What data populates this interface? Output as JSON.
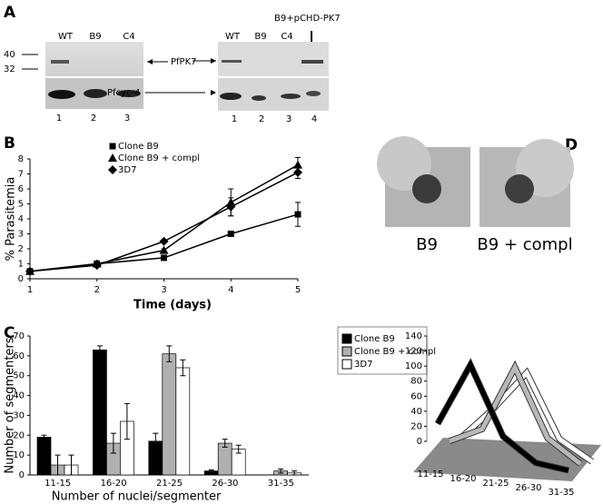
{
  "panel_a": {
    "label": "A",
    "left_blot": {
      "lanes": [
        "WT",
        "B9",
        "C4"
      ],
      "markers": [
        40,
        32
      ],
      "bands": [
        "PfPK7",
        "Pfcyc-4"
      ],
      "lane_numbers": [
        1,
        2,
        3
      ]
    },
    "right_blot": {
      "construct": "B9+pCHD-PK7",
      "lanes": [
        "WT",
        "B9",
        "C4"
      ],
      "lane_numbers": [
        1,
        2,
        3,
        4
      ]
    }
  },
  "panel_d": {
    "label": "D",
    "images": [
      "B9",
      "B9 + compl"
    ]
  },
  "chart_data": [
    {
      "type": "line",
      "panel_label": "B",
      "x_label": "Time (days)",
      "y_label": "% Parasitemia",
      "x": [
        1,
        2,
        3,
        4,
        5
      ],
      "xlim": [
        1,
        5
      ],
      "xticks": [
        1,
        2,
        3,
        4,
        5
      ],
      "ylim": [
        0,
        8
      ],
      "yticks": [
        0,
        1,
        2,
        3,
        4,
        5,
        6,
        7,
        8
      ],
      "series": [
        {
          "name": "Clone B9",
          "color": "#000000",
          "marker": "square",
          "values": [
            0.5,
            1.0,
            1.4,
            3.0,
            4.3
          ],
          "errors": [
            0,
            0.1,
            0.1,
            0.1,
            0.8
          ]
        },
        {
          "name": "Clone B9 + compl",
          "color": "#000000",
          "marker": "triangle",
          "values": [
            0.5,
            1.0,
            1.9,
            5.1,
            7.6
          ],
          "errors": [
            0,
            0.2,
            0.1,
            0.9,
            0.5
          ]
        },
        {
          "name": "3D7",
          "color": "#000000",
          "marker": "diamond",
          "values": [
            0.5,
            0.9,
            2.5,
            4.8,
            7.1
          ],
          "errors": [
            0,
            0.1,
            0.1,
            0.6,
            0.4
          ]
        }
      ]
    },
    {
      "type": "bar",
      "panel_label": "C",
      "x_label": "Number of nuclei/segmenter",
      "y_label": "Number of segmenters",
      "categories": [
        "11-15",
        "16-20",
        "21-25",
        "26-30",
        "31-35"
      ],
      "ylim": [
        0,
        70
      ],
      "yticks": [
        0,
        10,
        20,
        30,
        40,
        50,
        60,
        70
      ],
      "series": [
        {
          "name": "Clone B9",
          "color": "#000000",
          "values": [
            19,
            63,
            17,
            2,
            0
          ],
          "errors": [
            1,
            2,
            4,
            0.5,
            0
          ]
        },
        {
          "name": "Clone B9 + compl",
          "color": "#b0b0b0",
          "values": [
            5,
            16,
            61,
            16,
            2
          ],
          "errors": [
            5,
            5,
            4,
            2,
            1
          ]
        },
        {
          "name": "3D7",
          "color": "#ffffff",
          "values": [
            5,
            27,
            54,
            13,
            1
          ],
          "errors": [
            5,
            9,
            4,
            2,
            1
          ]
        }
      ]
    },
    {
      "type": "line3d",
      "categories": [
        "11-15",
        "16-20",
        "21-25",
        "26-30",
        "31-35"
      ],
      "ylim": [
        0,
        140
      ],
      "yticks": [
        0,
        20,
        40,
        60,
        80,
        100,
        120,
        140
      ],
      "series": [
        {
          "color": "#000000",
          "values": [
            38,
            122,
            33,
            4,
            0
          ]
        },
        {
          "color": "#b8b8b8",
          "values": [
            10,
            32,
            120,
            32,
            4
          ]
        },
        {
          "color": "#ffffff",
          "values": [
            10,
            55,
            108,
            26,
            2
          ]
        }
      ]
    }
  ]
}
